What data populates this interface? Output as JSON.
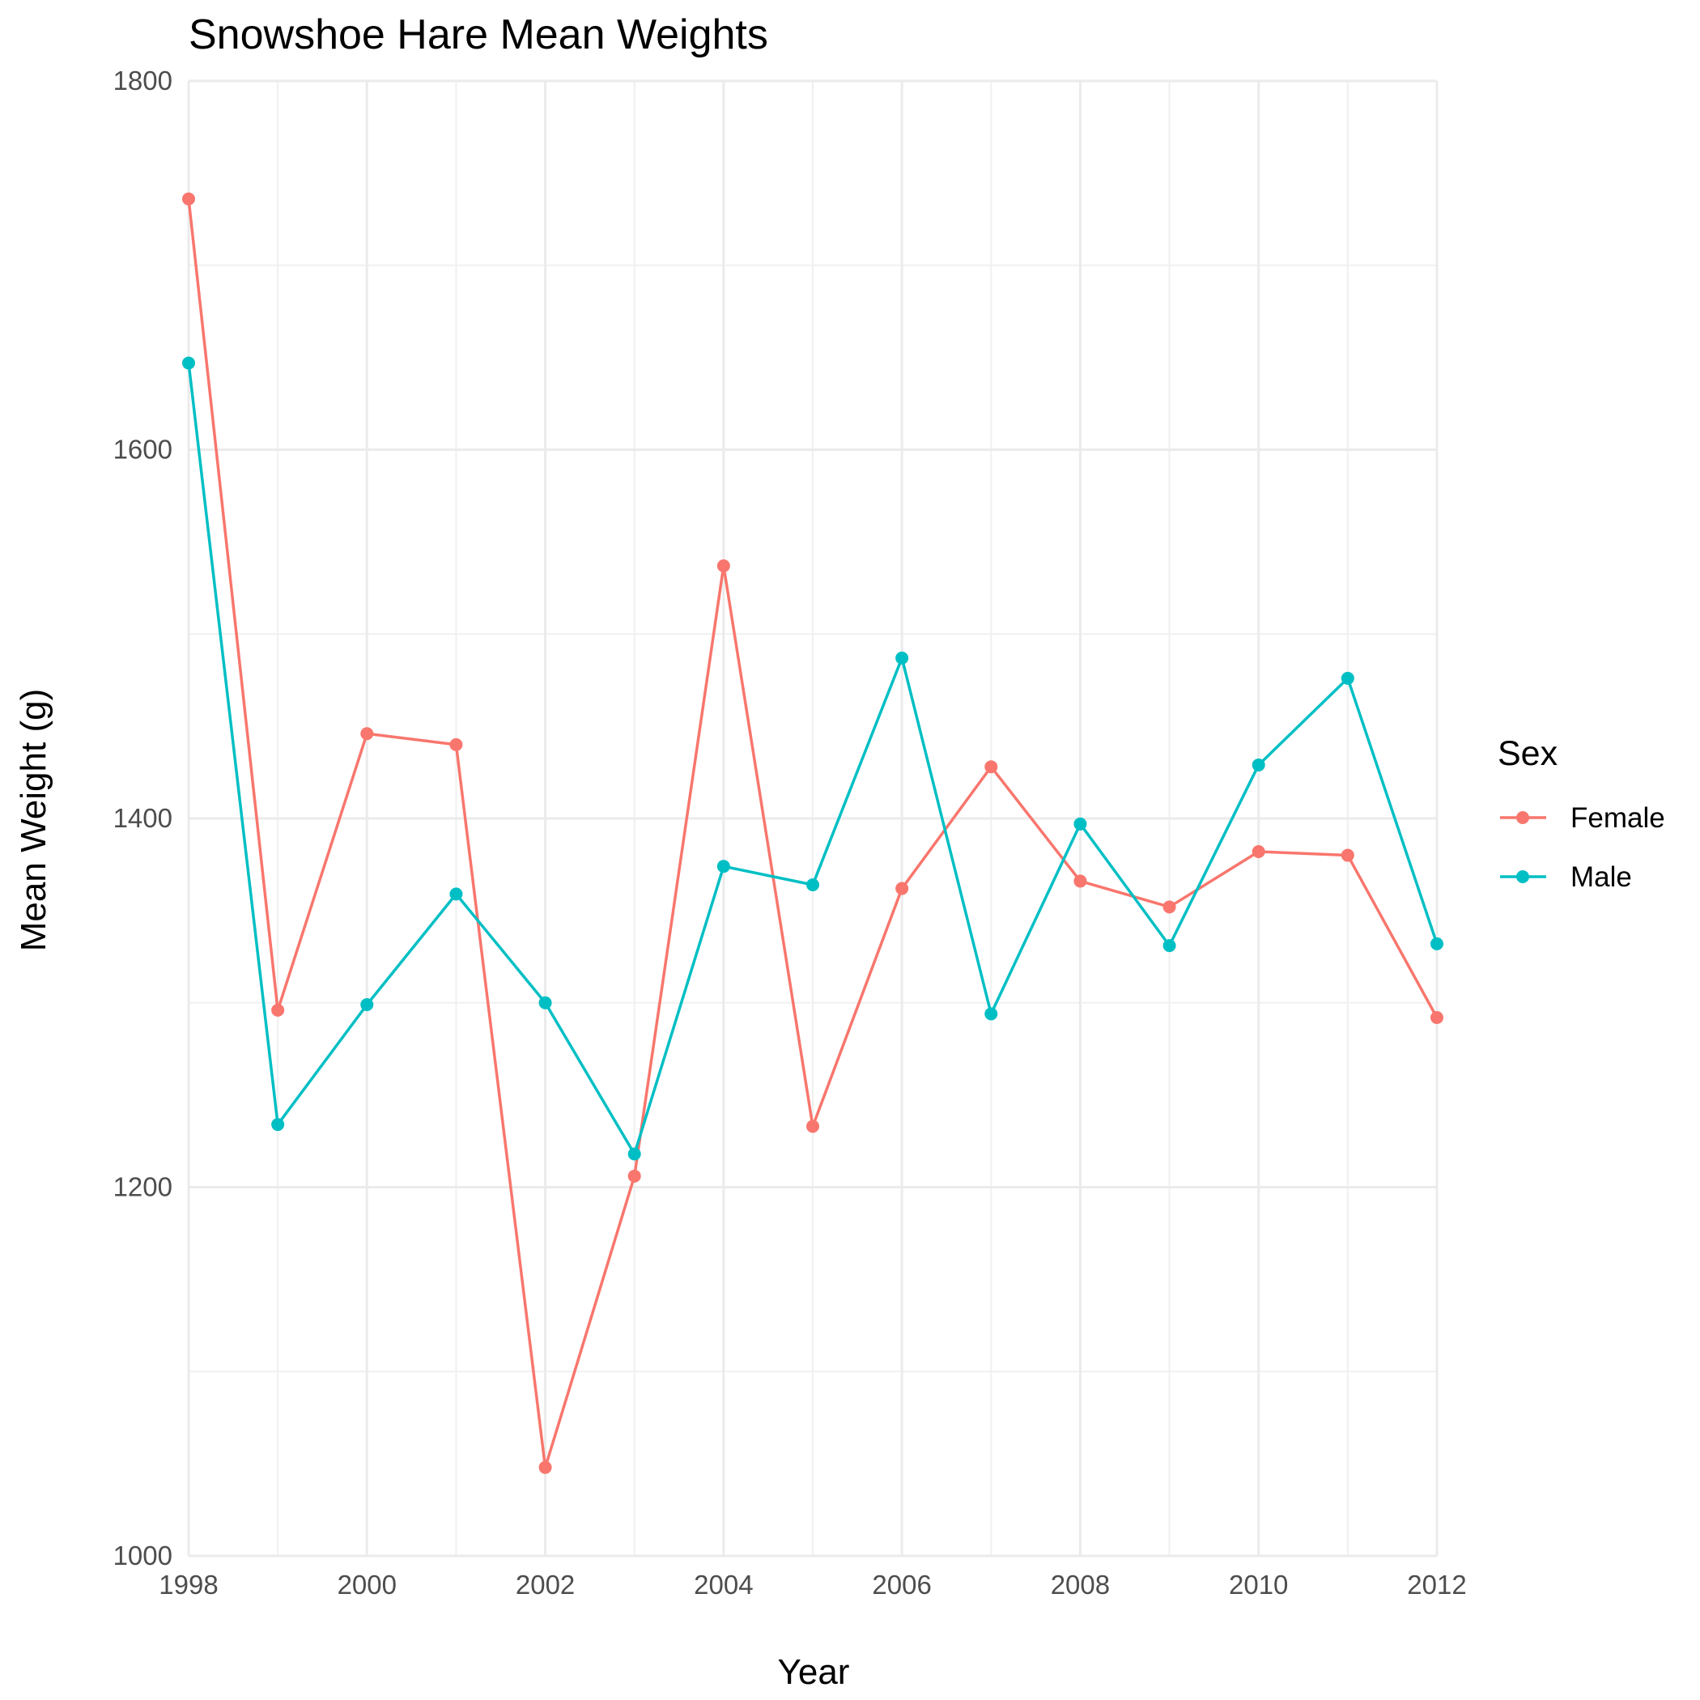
{
  "chart_data": {
    "type": "line",
    "title": "Snowshoe Hare Mean Weights",
    "xlabel": "Year",
    "ylabel": "Mean Weight (g)",
    "xlim": [
      1998,
      2012
    ],
    "ylim": [
      1000,
      1800
    ],
    "x_major_ticks": [
      1998,
      2000,
      2002,
      2004,
      2006,
      2008,
      2010,
      2012
    ],
    "x_minor_ticks": [
      1999,
      2001,
      2003,
      2005,
      2007,
      2009,
      2011
    ],
    "y_major_ticks": [
      1000,
      1200,
      1400,
      1600,
      1800
    ],
    "y_minor_ticks": [
      1100,
      1300,
      1500,
      1700
    ],
    "grid": true,
    "legend": {
      "title": "Sex",
      "position": "right"
    },
    "x": [
      1998,
      1999,
      2000,
      2001,
      2002,
      2003,
      2004,
      2005,
      2006,
      2007,
      2008,
      2009,
      2010,
      2011,
      2012
    ],
    "series": [
      {
        "name": "Female",
        "color": "#F8766D",
        "values": [
          1736,
          1296,
          1446,
          1440,
          1048,
          1206,
          1537,
          1233,
          1362,
          1428,
          1366,
          1352,
          1382,
          1380,
          1292
        ]
      },
      {
        "name": "Male",
        "color": "#00BFC4",
        "values": [
          1647,
          1234,
          1299,
          1359,
          1300,
          1218,
          1374,
          1364,
          1487,
          1294,
          1397,
          1331,
          1429,
          1476,
          1332
        ]
      }
    ]
  }
}
